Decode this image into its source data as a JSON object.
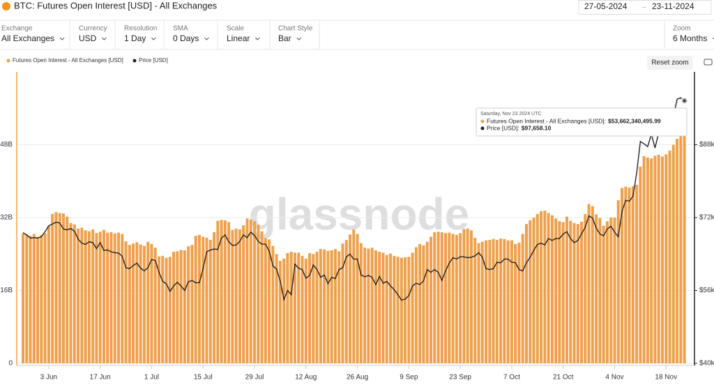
{
  "header": {
    "title": "BTC: Futures Open Interest [USD] - All Exchanges",
    "date_from": "27-05-2024",
    "date_to": "23-11-2024"
  },
  "controls": [
    {
      "label": "Exchange",
      "value": "All Exchanges"
    },
    {
      "label": "Currency",
      "value": "USD"
    },
    {
      "label": "Resolution",
      "value": "1 Day"
    },
    {
      "label": "SMA",
      "value": "0 Days"
    },
    {
      "label": "Scale",
      "value": "Linear"
    },
    {
      "label": "Chart Style",
      "value": "Bar"
    },
    {
      "label": "Zoom",
      "value": "6 Months"
    }
  ],
  "reset_zoom": "Reset zoom",
  "watermark": "glassnode",
  "chart_data": {
    "type": "bar",
    "categories": [
      null,
      null,
      null,
      null,
      null,
      null,
      null,
      "3 Jun",
      null,
      null,
      null,
      null,
      null,
      null,
      null,
      null,
      null,
      null,
      null,
      null,
      null,
      "17 Jun",
      null,
      null,
      null,
      null,
      null,
      null,
      null,
      null,
      null,
      null,
      null,
      null,
      null,
      "1 Jul",
      null,
      null,
      null,
      null,
      null,
      null,
      null,
      null,
      null,
      null,
      null,
      null,
      null,
      "15 Jul",
      null,
      null,
      null,
      null,
      null,
      null,
      null,
      null,
      null,
      null,
      null,
      null,
      null,
      "29 Jul",
      null,
      null,
      null,
      null,
      null,
      null,
      null,
      null,
      null,
      null,
      null,
      null,
      null,
      "12 Aug",
      null,
      null,
      null,
      null,
      null,
      null,
      null,
      null,
      null,
      null,
      null,
      null,
      null,
      "26 Aug",
      null,
      null,
      null,
      null,
      null,
      null,
      null,
      null,
      null,
      null,
      null,
      null,
      null,
      "9 Sep",
      null,
      null,
      null,
      null,
      null,
      null,
      null,
      null,
      null,
      null,
      null,
      null,
      null,
      "23 Sep",
      null,
      null,
      null,
      null,
      null,
      null,
      null,
      null,
      null,
      null,
      null,
      null,
      null,
      "7 Oct",
      null,
      null,
      null,
      null,
      null,
      null,
      null,
      null,
      null,
      null,
      null,
      null,
      null,
      "21 Oct",
      null,
      null,
      null,
      null,
      null,
      null,
      null,
      null,
      null,
      null,
      null,
      null,
      null,
      "4 Nov",
      null,
      null,
      null,
      null,
      null,
      null,
      null,
      null,
      null,
      null,
      null,
      null,
      null,
      "18 Nov",
      null,
      null,
      null,
      null,
      null
    ],
    "series": [
      {
        "name": "Futures Open Interest - All Exchanges [USD]",
        "type": "bar",
        "color": "#f0a04b",
        "values": [
          28500000000.0,
          28300000000.0,
          28000000000.0,
          28400000000.0,
          27800000000.0,
          28200000000.0,
          28600000000.0,
          30200000000.0,
          32800000000.0,
          33200000000.0,
          33000000000.0,
          32900000000.0,
          32200000000.0,
          30800000000.0,
          30500000000.0,
          29600000000.0,
          29800000000.0,
          29200000000.0,
          29000000000.0,
          29400000000.0,
          28600000000.0,
          28900000000.0,
          29300000000.0,
          28700000000.0,
          28800000000.0,
          28500000000.0,
          28700000000.0,
          28400000000.0,
          26800000000.0,
          26000000000.0,
          26300000000.0,
          26600000000.0,
          26100000000.0,
          25800000000.0,
          26700000000.0,
          26200000000.0,
          25400000000.0,
          23500000000.0,
          23600000000.0,
          23200000000.0,
          23400000000.0,
          24500000000.0,
          24600000000.0,
          24900000000.0,
          24800000000.0,
          25700000000.0,
          26000000000.0,
          28000000000.0,
          28200000000.0,
          27800000000.0,
          27600000000.0,
          27100000000.0,
          28800000000.0,
          31300000000.0,
          31500000000.0,
          31400000000.0,
          31000000000.0,
          29300000000.0,
          29600000000.0,
          29400000000.0,
          30300000000.0,
          31800000000.0,
          31600000000.0,
          31200000000.0,
          30400000000.0,
          29000000000.0,
          27500000000.0,
          27200000000.0,
          25800000000.0,
          24000000000.0,
          22500000000.0,
          23000000000.0,
          24200000000.0,
          24500000000.0,
          24300000000.0,
          24300000000.0,
          23600000000.0,
          23000000000.0,
          24200000000.0,
          24000000000.0,
          24500000000.0,
          25100000000.0,
          25000000000.0,
          24700000000.0,
          24800000000.0,
          25100000000.0,
          24600000000.0,
          26300000000.0,
          27100000000.0,
          28300000000.0,
          29400000000.0,
          28400000000.0,
          26400000000.0,
          25400000000.0,
          25200000000.0,
          25400000000.0,
          24800000000.0,
          24500000000.0,
          24300000000.0,
          23800000000.0,
          24100000000.0,
          23600000000.0,
          23400000000.0,
          23200000000.0,
          23300000000.0,
          23400000000.0,
          24300000000.0,
          25500000000.0,
          26200000000.0,
          25900000000.0,
          26700000000.0,
          27800000000.0,
          28800000000.0,
          28900000000.0,
          28800000000.0,
          28600000000.0,
          28700000000.0,
          28400000000.0,
          28200000000.0,
          28600000000.0,
          29500000000.0,
          29600000000.0,
          29200000000.0,
          27600000000.0,
          26400000000.0,
          26700000000.0,
          27000000000.0,
          27100000000.0,
          27300000000.0,
          27100000000.0,
          27400000000.0,
          27300000000.0,
          27000000000.0,
          27000000000.0,
          26200000000.0,
          26500000000.0,
          28400000000.0,
          30600000000.0,
          31400000000.0,
          32000000000.0,
          32800000000.0,
          33400000000.0,
          33500000000.0,
          33000000000.0,
          32500000000.0,
          31800000000.0,
          31200000000.0,
          31000000000.0,
          32200000000.0,
          31300000000.0,
          30800000000.0,
          30600000000.0,
          31100000000.0,
          32800000000.0,
          35000000000.0,
          34500000000.0,
          32700000000.0,
          31900000000.0,
          30200000000.0,
          31200000000.0,
          32000000000.0,
          32000000000.0,
          35800000000.0,
          38500000000.0,
          38800000000.0,
          38600000000.0,
          38900000000.0,
          39200000000.0,
          43200000000.0,
          45500000000.0,
          45200000000.0,
          45000000000.0,
          45600000000.0,
          45800000000.0,
          45400000000.0,
          45900000000.0,
          46700000000.0,
          48000000000.0,
          49300000000.0,
          53500000000.0,
          53662340495.99
        ]
      },
      {
        "name": "Price [USD]",
        "type": "line",
        "axis": "y2",
        "color": "#222222",
        "values": [
          68700,
          68200,
          67500,
          67600,
          67500,
          67800,
          68900,
          70200,
          70600,
          71000,
          70800,
          69500,
          69300,
          69600,
          69000,
          67300,
          66400,
          66100,
          66700,
          66500,
          65200,
          66500,
          64800,
          64900,
          64500,
          64300,
          64200,
          63500,
          61000,
          60800,
          61500,
          62000,
          60900,
          60300,
          61000,
          62800,
          62600,
          60000,
          58000,
          57500,
          55800,
          57000,
          57800,
          57000,
          56000,
          57900,
          58200,
          57700,
          57700,
          60800,
          64500,
          64900,
          65100,
          65000,
          67500,
          68200,
          66700,
          65900,
          66000,
          66800,
          68200,
          67600,
          68800,
          68100,
          66800,
          66200,
          66200,
          64600,
          61400,
          60700,
          58100,
          54000,
          56000,
          55100,
          61800,
          60900,
          60600,
          58700,
          59300,
          61600,
          60600,
          58900,
          59400,
          57500,
          58900,
          58600,
          60600,
          61000,
          63400,
          64000,
          62900,
          62900,
          59400,
          59000,
          59300,
          58900,
          57300,
          59100,
          57600,
          58000,
          57000,
          56200,
          55100,
          53900,
          54100,
          54900,
          57000,
          57600,
          57300,
          58100,
          60600,
          60000,
          60600,
          60000,
          58200,
          60300,
          62000,
          63200,
          62900,
          63400,
          63400,
          63200,
          63300,
          63600,
          64300,
          63300,
          60800,
          60600,
          60800,
          62200,
          62100,
          62900,
          62900,
          62200,
          62100,
          60600,
          60300,
          62100,
          63300,
          64800,
          66100,
          66400,
          66000,
          67400,
          67000,
          67400,
          67400,
          68400,
          68900,
          67400,
          66500,
          67000,
          68400,
          69900,
          72400,
          71900,
          69700,
          68400,
          68000,
          69500,
          70100,
          68800,
          67800,
          73300,
          75800,
          75600,
          76700,
          81800,
          88700,
          88200,
          87600,
          90300,
          87300,
          90600,
          91100,
          92300,
          92200,
          94300,
          98000,
          98300,
          97658.1
        ]
      }
    ],
    "ylim": [
      0,
      64000000000.0
    ],
    "yticks": [
      0,
      {
        "value": 16000000000.0,
        "label": "16B"
      },
      {
        "value": 32000000000.0,
        "label": "32B"
      },
      {
        "value": 48000000000.0,
        "label": "48B"
      }
    ],
    "y2lim": [
      40000,
      104000
    ],
    "y2ticks": [
      {
        "value": 40000,
        "label": "$40k"
      },
      {
        "value": 56000,
        "label": "$56k"
      },
      {
        "value": 72000,
        "label": "$72k"
      },
      {
        "value": 88000,
        "label": "$88k"
      }
    ],
    "grid": true,
    "tooltip": {
      "title": "Saturday, Nov 23 2024 UTC",
      "items": [
        {
          "label": "Futures Open Interest - All Exchanges [USD]:",
          "value_label": "$53,662,340,495.99"
        },
        {
          "label": "Price [USD]:",
          "value_label": "$97,658.10"
        }
      ]
    }
  }
}
